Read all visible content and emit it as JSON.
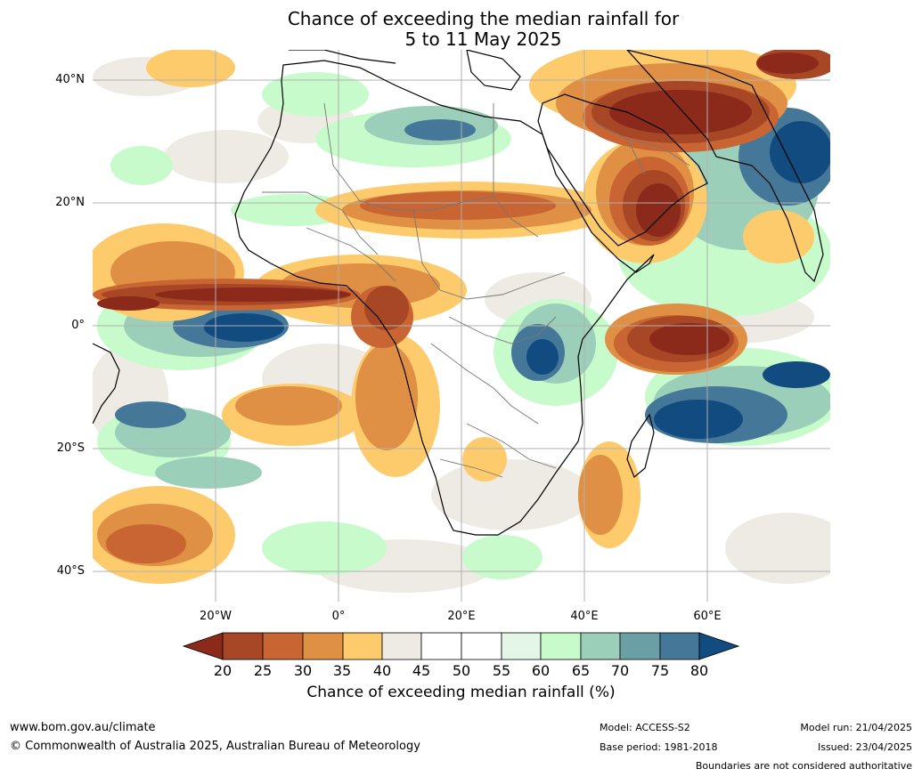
{
  "title": {
    "line1": "Chance of exceeding the median rainfall for",
    "line2": "5 to 11 May 2025"
  },
  "map": {
    "lat_labels": [
      "40°N",
      "20°N",
      "0°",
      "20°S",
      "40°S"
    ],
    "lon_labels": [
      "20°W",
      "0°",
      "20°E",
      "40°E",
      "60°E"
    ],
    "land_outline_color": "#000000",
    "border_color": "#777777",
    "gridline_color": "#b0b0b0"
  },
  "colorbar": {
    "ticks": [
      "20",
      "25",
      "30",
      "35",
      "40",
      "45",
      "50",
      "55",
      "60",
      "65",
      "70",
      "75",
      "80"
    ],
    "colors": {
      "below_20": "#8b2a1a",
      "20_25": "#a84726",
      "25_30": "#c96533",
      "30_35": "#df9044",
      "35_40": "#fdcb6b",
      "40_45": "#eeebe5",
      "45_50": "#ffffff",
      "50_55": "#ffffff",
      "55_60": "#e4f6e6",
      "60_65": "#c7fbcb",
      "65_70": "#9ccfb9",
      "70_75": "#6a9fa5",
      "75_80": "#457898",
      "above_80": "#124b80"
    },
    "label": "Chance of exceeding median rainfall (%)"
  },
  "footer": {
    "website": "www.bom.gov.au/climate",
    "copyright": "© Commonwealth of Australia 2025, Australian Bureau of Meteorology",
    "model": "Model: ACCESS-S2",
    "base_period": "Base period: 1981-2018",
    "model_run": "Model run: 21/04/2025",
    "issued": "Issued: 23/04/2025",
    "disclaimer": "Boundaries are not considered authoritative"
  }
}
